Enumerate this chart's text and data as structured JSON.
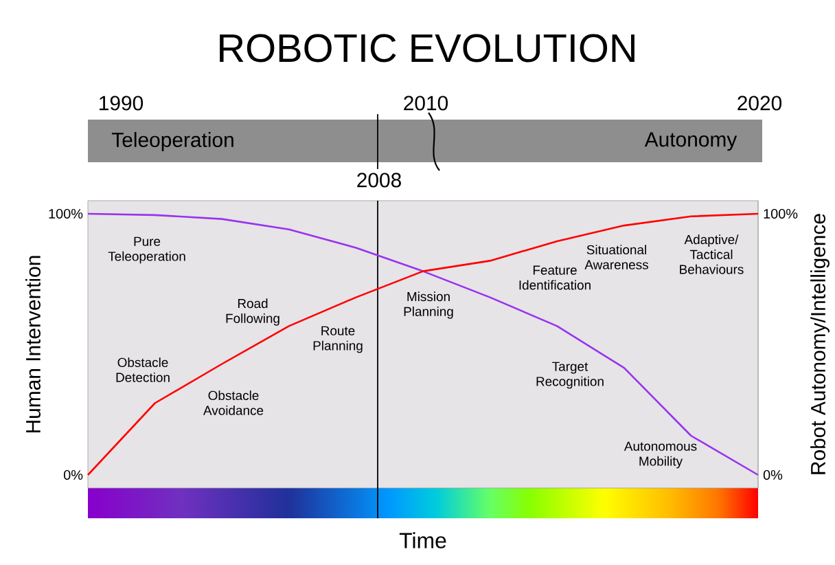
{
  "chart_data": {
    "type": "line",
    "title": "ROBOTIC EVOLUTION",
    "xlabel": "Time",
    "ylabel": "Human Intervention",
    "y2label": "Robot Autonomy/Intelligence",
    "categories": [
      null,
      null,
      null,
      null,
      null,
      null,
      null,
      null,
      null,
      null,
      null
    ],
    "series": [
      {
        "color": "#9933ee",
        "values": [
          100,
          99.5,
          98,
          94,
          87,
          78,
          68,
          57,
          41,
          15,
          0
        ]
      },
      {
        "color": "#ff0000",
        "axis": "y2",
        "values": [
          0,
          27.5,
          42.5,
          57,
          68,
          78,
          82,
          89.5,
          95.5,
          99,
          100
        ]
      }
    ],
    "ylim": [
      -5,
      105
    ],
    "yticks": [
      {
        "value": 0,
        "label": "0%"
      },
      {
        "value": 100,
        "label": "100%"
      }
    ],
    "y2lim": [
      -5,
      105
    ],
    "y2ticks": [
      {
        "value": 0,
        "label": "0%"
      },
      {
        "value": 100,
        "label": "100%"
      }
    ],
    "annotations": [
      "1990",
      "2010",
      "2020",
      "Teleoperation",
      "Autonomy",
      "Pure Teleoperation",
      "Road Following",
      "Route Planning",
      "Obstacle Detection",
      "Obstacle Avoidance",
      "Mission Planning",
      "Feature Identification",
      "Situational Awareness",
      "Adaptive/ Tactical Behaviours",
      "Target Recognition",
      "Autonomous Mobility",
      "2008"
    ]
  }
}
